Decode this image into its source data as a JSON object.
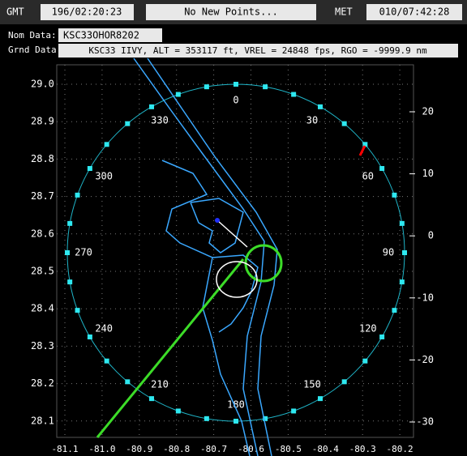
{
  "header": {
    "gmt_label": "GMT",
    "gmt": "196/02:20:23",
    "status": "No New Points...",
    "met_label": "MET",
    "met": "010/07:42:28",
    "nom_label": "Nom Data:",
    "nom": "KSC33OHOR8202",
    "grnd_label": "Grnd Data:",
    "grnd": "KSC33 IIVY, ALT = 353117 ft, VREL = 24848 fps, RGO = -9999.9 nm"
  },
  "plot": {
    "lat_ticks": [
      "29.0",
      "28.9",
      "28.8",
      "28.7",
      "28.6",
      "28.5",
      "28.4",
      "28.3",
      "28.2",
      "28.1"
    ],
    "lon_ticks": [
      "-81.1",
      "-81.0",
      "-80.9",
      "-80.8",
      "-80.7",
      "-80.6",
      "-80.5",
      "-80.4",
      "-80.3",
      "-80.2"
    ],
    "range_ticks": [
      "20",
      "10",
      "0",
      "-10",
      "-20",
      "-30"
    ],
    "bearings": [
      "0",
      "30",
      "60",
      "90",
      "120",
      "150",
      "180",
      "210",
      "240",
      "270",
      "300",
      "330"
    ]
  }
}
